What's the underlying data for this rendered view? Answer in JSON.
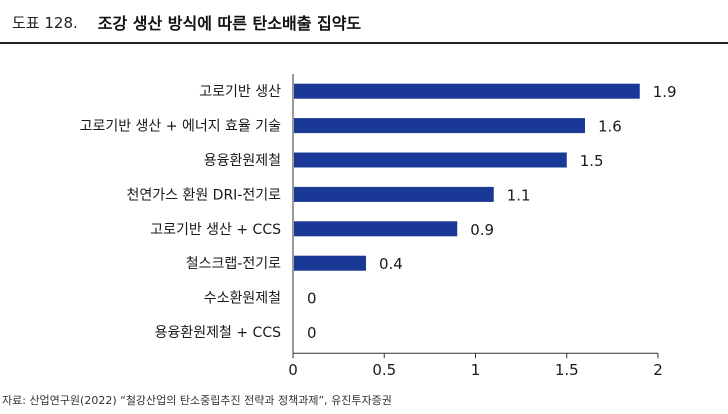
{
  "header": {
    "figure_number": "도표 128.",
    "title": "조강 생산 방식에 따른 탄소배출 집약도"
  },
  "source": "자료: 산업연구원(2022) “철강산업의 탄소중립추진 전략과 정책과제”, 유진투자증권",
  "colors": {
    "bar": "#1a3896",
    "axis": "#333333",
    "text": "#1a1a1a"
  },
  "chart_data": {
    "type": "bar",
    "orientation": "horizontal",
    "categories": [
      "고로기반 생산",
      "고로기반 생산 + 에너지 효율 기술",
      "용융환원제철",
      "천연가스 환원 DRI-전기로",
      "고로기반 생산 + CCS",
      "철스크랩-전기로",
      "수소환원제철",
      "용융환원제철 + CCS"
    ],
    "values": [
      1.9,
      1.6,
      1.5,
      1.1,
      0.9,
      0.4,
      0,
      0
    ],
    "value_labels": [
      "1.9",
      "1.6",
      "1.5",
      "1.1",
      "0.9",
      "0.4",
      "0",
      "0"
    ],
    "xlim": [
      0,
      2
    ],
    "xticks": [
      0,
      0.5,
      1,
      1.5,
      2
    ],
    "xtick_labels": [
      "0",
      "0.5",
      "1",
      "1.5",
      "2"
    ],
    "title": "",
    "xlabel": "",
    "ylabel": "",
    "grid": false,
    "legend": "none"
  }
}
